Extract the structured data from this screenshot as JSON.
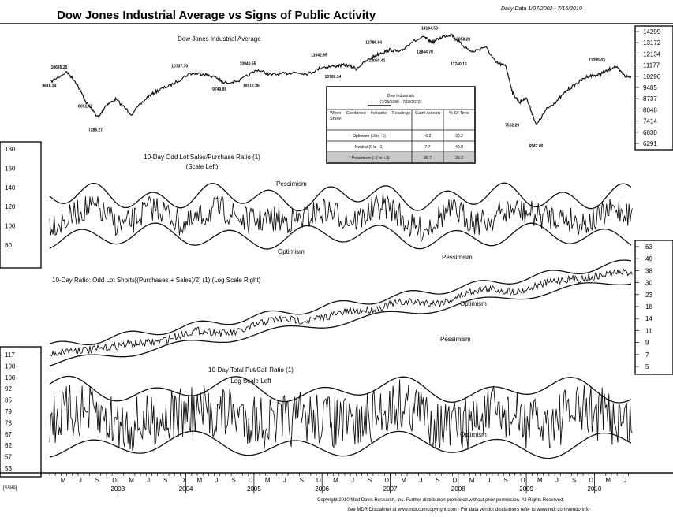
{
  "header": {
    "title": "Dow Jones Industrial Average vs Signs of Public Activity",
    "date_range": "Daily Data 1/07/2002 - 7/16/2010"
  },
  "chart_data": [
    {
      "type": "line",
      "title": "Dow Jones Industrial Average",
      "scale": "log",
      "axis": "right",
      "yticks": [
        "14299",
        "13172",
        "12134",
        "11177",
        "10296",
        "9485",
        "8737",
        "8048",
        "7414",
        "6830",
        "6291"
      ],
      "ylim": [
        6291,
        14299
      ],
      "series": [
        {
          "x": [
            2002.02,
            2002.25,
            2002.38,
            2002.55,
            2002.72,
            2002.82,
            2002.97,
            2003.2,
            2003.45,
            2003.6,
            2003.8,
            2004.05,
            2004.25,
            2004.45,
            2004.55,
            2004.8,
            2005.05,
            2005.25,
            2005.45,
            2005.6,
            2005.8,
            2006.0,
            2006.2,
            2006.35,
            2006.5,
            2006.7,
            2006.85,
            2007.0,
            2007.15,
            2007.3,
            2007.5,
            2007.62,
            2007.78,
            2007.9,
            2008.05,
            2008.2,
            2008.4,
            2008.55,
            2008.7,
            2008.8,
            2008.9,
            2009.0,
            2009.15,
            2009.3,
            2009.45,
            2009.6,
            2009.75,
            2009.9,
            2010.05,
            2010.15,
            2010.3,
            2010.45,
            2010.54
          ],
          "y": [
            9900,
            10635,
            9900,
            8400,
            7600,
            8300,
            8700,
            7800,
            8900,
            9300,
            9700,
            10500,
            10500,
            10200,
            9800,
            10000,
            10800,
            10400,
            10500,
            10600,
            10500,
            11000,
            11100,
            11200,
            10900,
            11700,
            12200,
            12500,
            12300,
            13200,
            13700,
            13200,
            13800,
            14000,
            13000,
            12300,
            12800,
            11400,
            11100,
            9100,
            8500,
            8800,
            7200,
            8100,
            8600,
            9300,
            9800,
            10300,
            10400,
            10600,
            11100,
            10300,
            10250
          ]
        }
      ],
      "data_labels": [
        "10635.25",
        "9618.24",
        "8051.48",
        "7286.27",
        "10737.70",
        "9749.99",
        "10012.36",
        "10940.55",
        "11642.65",
        "10700.14",
        "12786.64",
        "12050.41",
        "14164.53",
        "12844.78",
        "13058.20",
        "11740.15",
        "7552.29",
        "6547.05",
        "11205.03"
      ],
      "table": {
        "title": "Dow Industrials",
        "period": "(7/25/1980 - 7/18/2010)",
        "columns": [
          "When Combined Indicator Readings Show:",
          "Gain/ Annum",
          "% Of Time"
        ],
        "rows": [
          {
            "label": "Optimism (-3 to -1)",
            "gain": "-6.2",
            "pct": "30.2"
          },
          {
            "label": "Neutral (0 to +1)",
            "gain": "7.7",
            "pct": "40.0"
          },
          {
            "label": "* Pessimism (+2 or +3)",
            "gain": "26.7",
            "pct": "29.2"
          }
        ]
      }
    },
    {
      "type": "line",
      "title": "10-Day Odd Lot Sales/Purchase Ratio (1)",
      "subtitle": "(Scale Left)",
      "axis": "left",
      "yticks": [
        "180",
        "160",
        "140",
        "120",
        "100",
        "80"
      ],
      "ylim": [
        80,
        180
      ],
      "annotations": [
        "Pessimism",
        "Optimism"
      ]
    },
    {
      "type": "line",
      "title": "10-Day Ratio: Odd Lot Shorts[(Purchases + Sales)/2] (1) (Log Scale Right)",
      "scale": "log",
      "axis": "right",
      "yticks": [
        "63",
        "49",
        "38",
        "30",
        "23",
        "18",
        "14",
        "11",
        "9",
        "7",
        "5"
      ],
      "ylim": [
        5,
        63
      ],
      "annotations": [
        "Pessimism",
        "Optimism"
      ]
    },
    {
      "type": "line",
      "title": "10-Day Total Put/Call Ratio (1)",
      "subtitle": "Log Scale Left",
      "scale": "log",
      "axis": "left",
      "yticks": [
        "117",
        "108",
        "100",
        "92",
        "85",
        "79",
        "73",
        "67",
        "62",
        "57",
        "53"
      ],
      "ylim": [
        53,
        117
      ],
      "annotations": [
        "Pessimism",
        "Optimism"
      ]
    }
  ],
  "x_axis": {
    "start": 2002.0,
    "end": 2010.54,
    "month_ticks": [
      "M",
      "J",
      "S",
      "D",
      "M",
      "J",
      "S",
      "D",
      "M",
      "J",
      "S",
      "D",
      "M",
      "J",
      "S",
      "D",
      "M",
      "J",
      "S",
      "D",
      "M",
      "J",
      "S",
      "D",
      "M",
      "J",
      "S",
      "D",
      "M",
      "J",
      "S",
      "D",
      "M",
      "J"
    ],
    "years": [
      "2003",
      "2004",
      "2005",
      "2006",
      "2007",
      "2008",
      "2009",
      "2010"
    ]
  },
  "footer": {
    "chart_id": "[S589]",
    "copyright": "Copyright 2010 Med Davis Research, Inc. Further distribution prohibited without prior permission. All Rights Reserved.",
    "disclaimer": "See MDR Disclaimer at      www.mdr.comcopyright.com     - For data vendor disclaimers refer to      www.mdr.com/vendorinfo"
  }
}
